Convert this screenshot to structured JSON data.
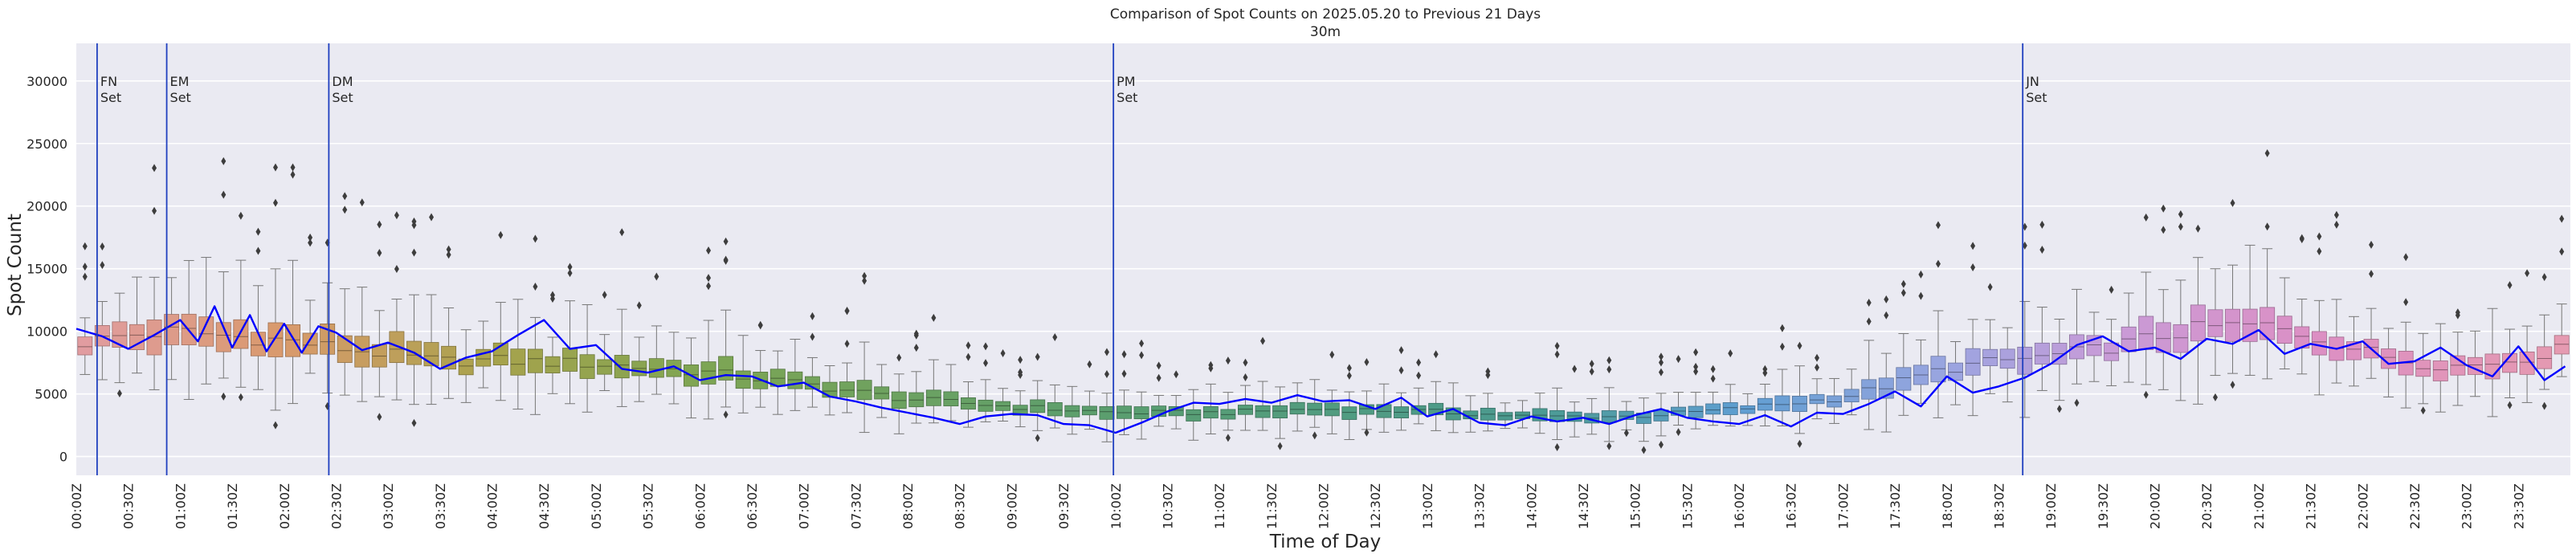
{
  "chart_data": {
    "type": "box",
    "title": "Comparison of Spot Counts on 2025.05.20 to Previous 21 Days",
    "subtitle": "30m",
    "xlabel": "Time of Day",
    "ylabel": "Spot Count",
    "ylim": [
      -1500,
      33000
    ],
    "yticks": [
      0,
      5000,
      10000,
      15000,
      20000,
      25000,
      30000
    ],
    "ytick_labels": [
      "0",
      "5000",
      "10000",
      "15000",
      "20000",
      "25000",
      "30000"
    ],
    "bin_minutes": 10,
    "xtick_labels": [
      "00:00Z",
      "00:30Z",
      "01:00Z",
      "01:30Z",
      "02:00Z",
      "02:30Z",
      "03:00Z",
      "03:30Z",
      "04:00Z",
      "04:30Z",
      "05:00Z",
      "05:30Z",
      "06:00Z",
      "06:30Z",
      "07:00Z",
      "07:30Z",
      "08:00Z",
      "08:30Z",
      "09:00Z",
      "09:30Z",
      "10:00Z",
      "10:30Z",
      "11:00Z",
      "11:30Z",
      "12:00Z",
      "12:30Z",
      "13:00Z",
      "13:30Z",
      "14:00Z",
      "14:30Z",
      "15:00Z",
      "15:30Z",
      "16:00Z",
      "16:30Z",
      "17:00Z",
      "17:30Z",
      "18:00Z",
      "18:30Z",
      "19:00Z",
      "19:30Z",
      "20:00Z",
      "20:30Z",
      "21:00Z",
      "21:30Z",
      "22:00Z",
      "22:30Z",
      "23:00Z",
      "23:30Z"
    ],
    "median_anchors": {
      "hours": [
        0,
        0.5,
        1,
        1.5,
        2,
        2.5,
        3,
        3.5,
        4,
        5,
        6,
        7,
        8,
        9,
        10,
        11,
        12,
        13,
        14,
        15,
        16,
        17,
        17.5,
        18,
        18.5,
        19,
        19.5,
        20,
        20.5,
        21,
        21.5,
        22,
        22.5,
        23,
        23.5,
        23.9
      ],
      "values": [
        9000,
        9700,
        10000,
        9600,
        9300,
        8700,
        8200,
        7600,
        7700,
        7400,
        6800,
        5800,
        4600,
        4000,
        3500,
        3500,
        3800,
        3600,
        3200,
        3200,
        3800,
        4700,
        5800,
        7000,
        7600,
        8000,
        8600,
        9500,
        10300,
        10500,
        9700,
        8500,
        7500,
        7200,
        7800,
        8500
      ]
    },
    "series_20250520": {
      "name": "2025.05.20",
      "color": "#0000ff",
      "hours": [
        0,
        0.25,
        0.5,
        0.75,
        1,
        1.17,
        1.33,
        1.5,
        1.67,
        1.83,
        2,
        2.17,
        2.33,
        2.5,
        2.75,
        3,
        3.25,
        3.5,
        3.75,
        4,
        4.25,
        4.5,
        4.75,
        5,
        5.25,
        5.5,
        5.75,
        6,
        6.25,
        6.5,
        6.75,
        7,
        7.25,
        7.5,
        7.75,
        8,
        8.25,
        8.5,
        8.75,
        9,
        9.25,
        9.5,
        9.75,
        10,
        10.25,
        10.5,
        10.75,
        11,
        11.25,
        11.5,
        11.75,
        12,
        12.25,
        12.5,
        12.75,
        13,
        13.25,
        13.5,
        13.75,
        14,
        14.25,
        14.5,
        14.75,
        15,
        15.25,
        15.5,
        15.75,
        16,
        16.25,
        16.5,
        16.75,
        17,
        17.25,
        17.5,
        17.75,
        18,
        18.25,
        18.5,
        18.75,
        19,
        19.25,
        19.5,
        19.75,
        20,
        20.25,
        20.5,
        20.75,
        21,
        21.25,
        21.5,
        21.75,
        22,
        22.25,
        22.5,
        22.75,
        23,
        23.25,
        23.5,
        23.75,
        23.95
      ],
      "values": [
        10200,
        9600,
        8600,
        9700,
        10900,
        9200,
        12000,
        8700,
        11300,
        8400,
        10600,
        8300,
        10400,
        9900,
        8500,
        9100,
        8300,
        7000,
        7900,
        8400,
        9700,
        10900,
        8600,
        8900,
        7000,
        6700,
        7200,
        6100,
        6500,
        6400,
        5600,
        5900,
        4800,
        4400,
        3900,
        3500,
        3100,
        2600,
        3200,
        3400,
        3300,
        2600,
        2500,
        1900,
        2700,
        3600,
        4300,
        4200,
        4600,
        4300,
        4900,
        4400,
        4500,
        3800,
        4700,
        3200,
        3800,
        2700,
        2500,
        3200,
        2800,
        3100,
        2600,
        3300,
        3800,
        3100,
        2800,
        2600,
        3300,
        2400,
        3500,
        3400,
        4200,
        5200,
        4000,
        6400,
        5100,
        5600,
        6300,
        7400,
        8900,
        9600,
        8400,
        8700,
        7800,
        9400,
        9000,
        10100,
        8200,
        9000,
        8600,
        9200,
        7400,
        7600,
        8700,
        7300,
        6400,
        8800,
        6100,
        7200
      ]
    },
    "set_lines": [
      {
        "hour": 0.2,
        "label": "FN\nSet",
        "l1": "FN",
        "l2": "Set"
      },
      {
        "hour": 0.87,
        "label": "EM\nSet",
        "l1": "EM",
        "l2": "Set"
      },
      {
        "hour": 2.43,
        "label": "DM\nSet",
        "l1": "DM",
        "l2": "Set"
      },
      {
        "hour": 9.98,
        "label": "PM\nSet",
        "l1": "PM",
        "l2": "Set"
      },
      {
        "hour": 18.73,
        "label": "JN\nSet",
        "l1": "JN",
        "l2": "Set"
      }
    ],
    "box_palette": [
      {
        "hour": 0,
        "color": "#e19ca2"
      },
      {
        "hour": 2,
        "color": "#d99a6c"
      },
      {
        "hour": 4,
        "color": "#a8a34c"
      },
      {
        "hour": 6,
        "color": "#7ea553"
      },
      {
        "hour": 10,
        "color": "#5a9e6f"
      },
      {
        "hour": 14,
        "color": "#4a9a90"
      },
      {
        "hour": 16,
        "color": "#5f9ed1"
      },
      {
        "hour": 18,
        "color": "#9aa5e0"
      },
      {
        "hour": 19.5,
        "color": "#c79bd8"
      },
      {
        "hour": 21.5,
        "color": "#dc8fc4"
      },
      {
        "hour": 24,
        "color": "#e59ab0"
      }
    ],
    "colors": {
      "background": "#eaeaf2",
      "grid": "#ffffff",
      "line": "#0000ff",
      "setline": "#1f3fbf",
      "whisker": "#777777",
      "outlier": "#3d3d3d"
    }
  }
}
